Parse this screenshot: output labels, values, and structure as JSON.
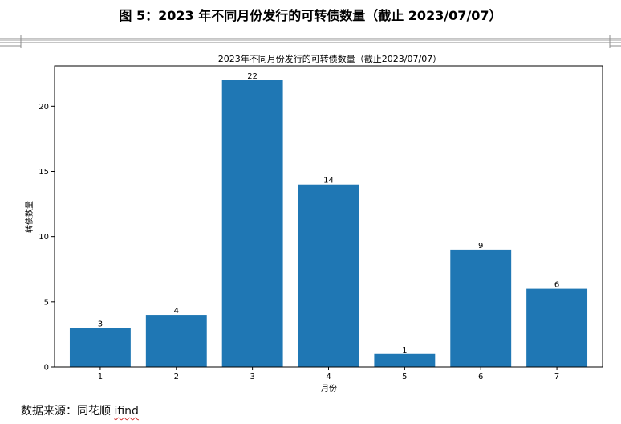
{
  "figure": {
    "caption": "图 5：2023 年不同月份发行的可转债数量（截止 2023/07/07）"
  },
  "source": {
    "label": "数据来源：同花顺 ",
    "name": "ifind"
  },
  "colors": {
    "bar": "#1f77b4",
    "axis": "#000000",
    "rule": "#8c8c8c"
  },
  "chart_data": {
    "type": "bar",
    "title": "2023年不同月份发行的可转债数量（截止2023/07/07）",
    "xlabel": "月份",
    "ylabel": "转债数量",
    "categories": [
      "1",
      "2",
      "3",
      "4",
      "5",
      "6",
      "7"
    ],
    "values": [
      3,
      4,
      22,
      14,
      1,
      9,
      6
    ],
    "data_labels": [
      "3",
      "4",
      "22",
      "14",
      "1",
      "9",
      "6"
    ],
    "ylim": [
      0,
      23.1
    ],
    "yticks": [
      0,
      5,
      10,
      15,
      20
    ],
    "ytick_labels": [
      "0",
      "5",
      "10",
      "15",
      "20"
    ],
    "grid": false,
    "legend": "none"
  }
}
